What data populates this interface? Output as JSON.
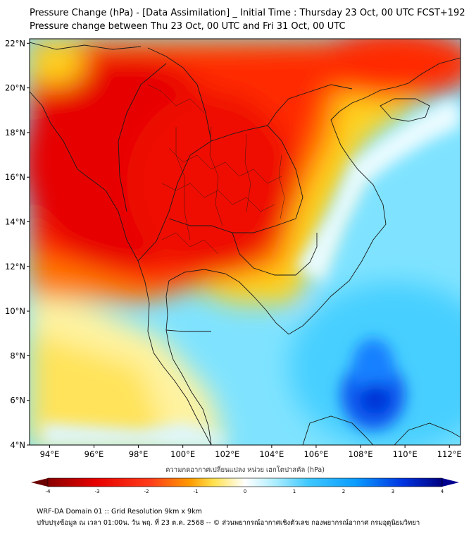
{
  "header": {
    "title_line1": "Pressure Change (hPa) - [Data Assimilation] _ Initial Time : Thursday 23 Oct, 00 UTC FCST+192",
    "title_line2": "Pressure change between Thu 23 Oct, 00 UTC and Fri 31 Oct, 00 UTC"
  },
  "map": {
    "lat_labels": [
      "22°N",
      "20°N",
      "18°N",
      "16°N",
      "14°N",
      "12°N",
      "10°N",
      "8°N",
      "6°N",
      "4°N"
    ],
    "lon_labels": [
      "94°E",
      "96°E",
      "98°E",
      "100°E",
      "102°E",
      "104°E",
      "106°E",
      "108°E",
      "110°E",
      "112°E"
    ],
    "lat_range": [
      4,
      22.2
    ],
    "lon_range": [
      93.1,
      112.5
    ]
  },
  "colorbar": {
    "title": "ความกดอากาศเปลี่ยนแปลง หน่วย เฮกโตปาสคัล (hPa)",
    "tick_labels": [
      "-4",
      "-3",
      "-2",
      "-1",
      "0",
      "1",
      "2",
      "3",
      "4"
    ],
    "range": [
      -4,
      4
    ],
    "colors": {
      "min": "#6b0000",
      "strong_neg": "#e60000",
      "neg": "#ff3300",
      "mid_neg": "#ffd000",
      "zero": "#ffffff",
      "pos": "#7fe0ff",
      "strong_pos": "#00a8ff",
      "max": "#00008f"
    }
  },
  "footer": {
    "line1": "WRF-DA Domain 01 :: Grid Resolution 9km x 9km",
    "line2": "ปรับปรุงข้อมูล ณ เวลา 01:00น. วัน พฤ. ที่ 23 ต.ค. 2568 -- © ส่วนพยากรณ์อากาศเชิงตัวเลข กองพยากรณ์อากาศ กรมอุตุนิยมวิทยา"
  }
}
